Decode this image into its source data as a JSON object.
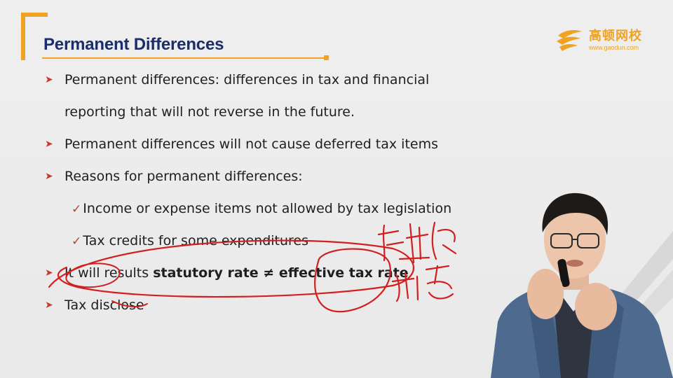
{
  "title": "Permanent Differences",
  "logo": {
    "name": "高顿网校",
    "url": "www.gaodun.com"
  },
  "bullets": {
    "b1_line1": "Permanent differences: differences in tax and financial",
    "b1_line2": "reporting that will not reverse in the future.",
    "b2": "Permanent differences will not cause deferred tax items",
    "b3": "Reasons for permanent differences:",
    "sub1": "Income or expense items not allowed by tax legislation",
    "sub2": "Tax credits for some expenditures",
    "b4_prefix": "It will results ",
    "b4_bold": "statutory rate ≠ effective tax rate",
    "b5": "Tax disclose"
  },
  "colors": {
    "accent": "#f0a322",
    "title": "#1b2e6b",
    "marker": "#c53c2b",
    "ink": "#d21f1f"
  }
}
